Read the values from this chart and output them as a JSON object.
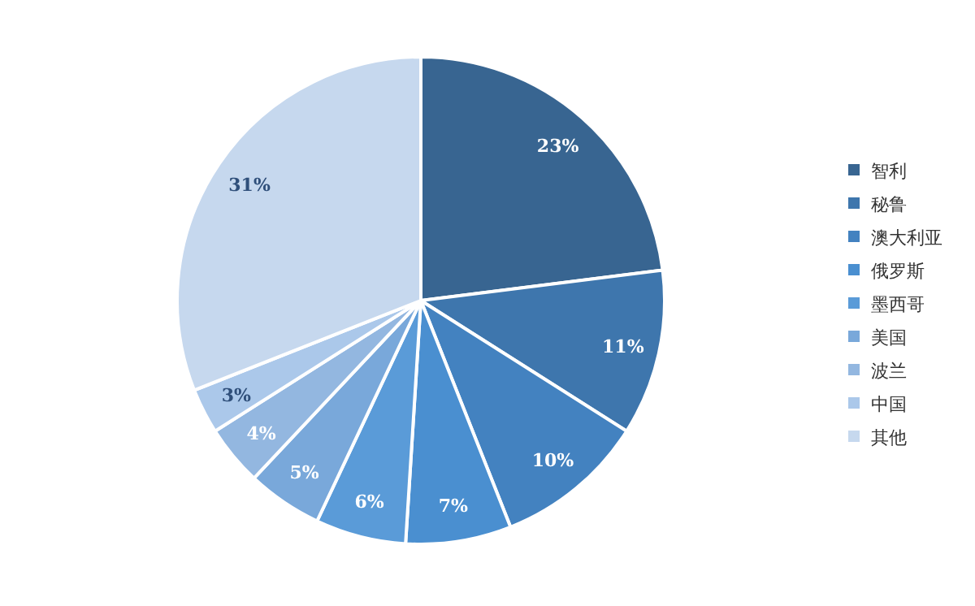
{
  "chart_data": {
    "type": "pie",
    "categories": [
      "智利",
      "秘鲁",
      "澳大利亚",
      "俄罗斯",
      "墨西哥",
      "美国",
      "波兰",
      "中国",
      "其他"
    ],
    "values": [
      23,
      11,
      10,
      7,
      6,
      5,
      4,
      3,
      31
    ],
    "colors": [
      "#386591",
      "#3e76ad",
      "#4382c0",
      "#4a8fd0",
      "#5a9bd8",
      "#79a8da",
      "#93b7e0",
      "#abc8ea",
      "#c6d8ee"
    ],
    "value_labels": [
      "23%",
      "11%",
      "10%",
      "7%",
      "6%",
      "5%",
      "4%",
      "3%",
      "31%"
    ],
    "legend": "right"
  }
}
